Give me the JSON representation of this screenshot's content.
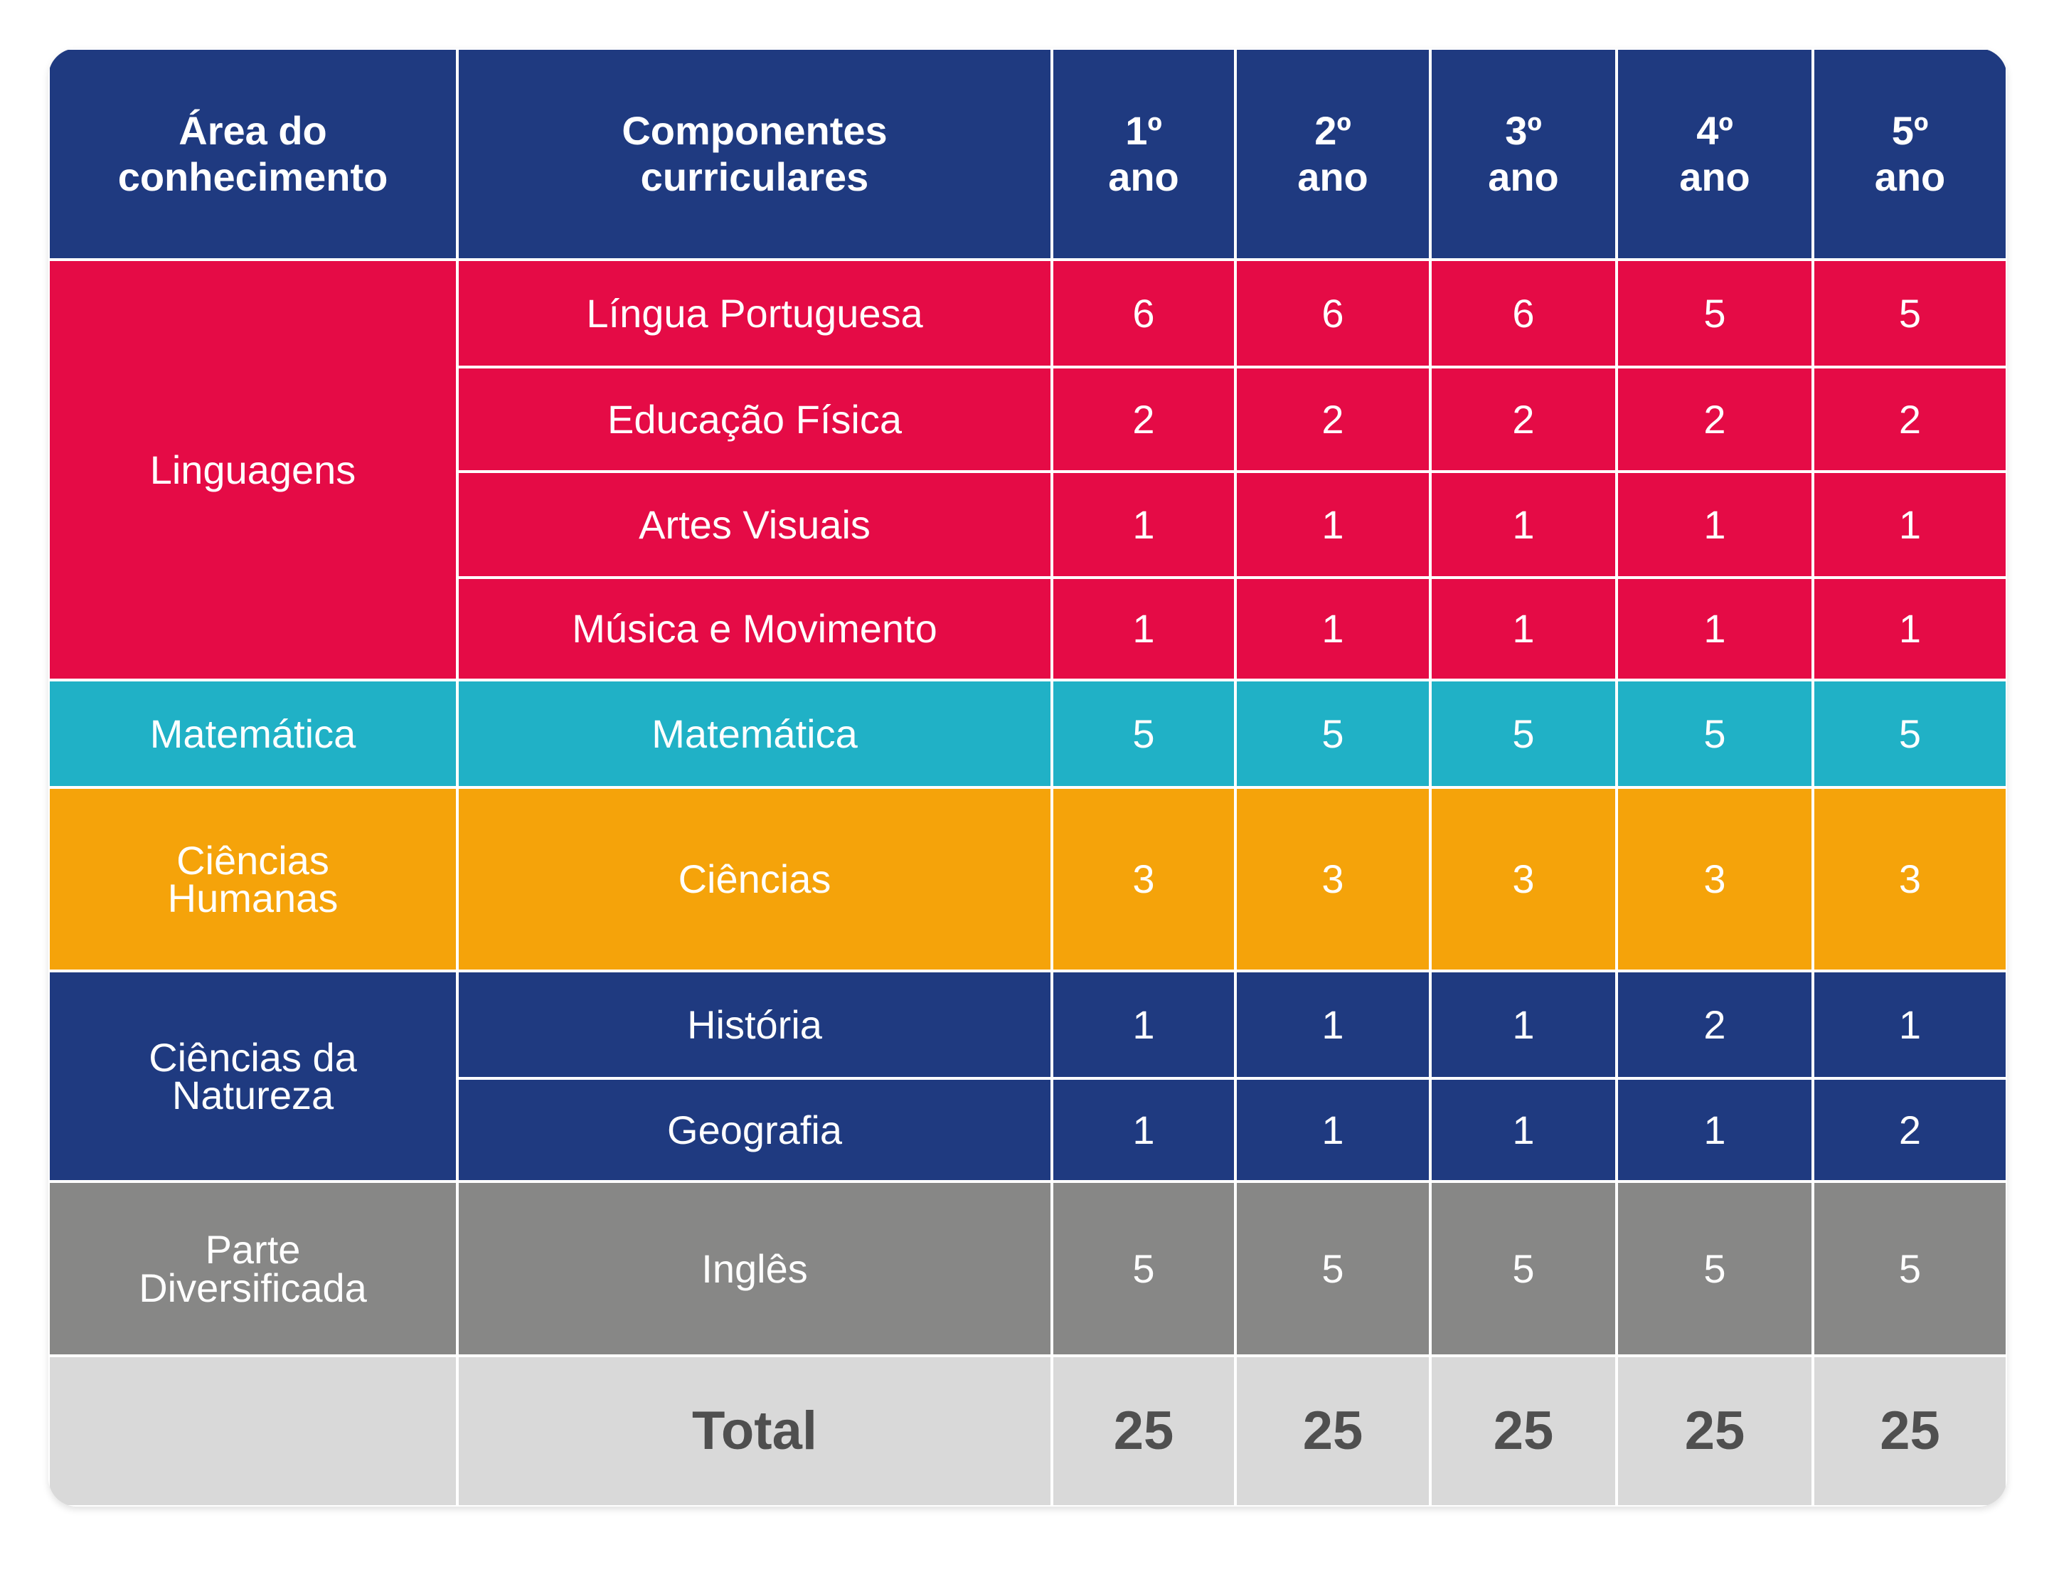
{
  "table": {
    "header": [
      "Área do conhecimento",
      "Componentes curriculares",
      "1º ano",
      "2º ano",
      "3º ano",
      "4º ano",
      "5º ano"
    ],
    "groups": [
      {
        "area": "Linguagens",
        "rows": [
          {
            "component": "Língua Portuguesa",
            "hours": [
              6,
              6,
              6,
              5,
              5
            ]
          },
          {
            "component": "Educação Física",
            "hours": [
              2,
              2,
              2,
              2,
              2
            ]
          },
          {
            "component": "Artes Visuais",
            "hours": [
              1,
              1,
              1,
              1,
              1
            ]
          },
          {
            "component": "Música e Movimento",
            "hours": [
              1,
              1,
              1,
              1,
              1
            ]
          }
        ]
      },
      {
        "area": "Matemática",
        "rows": [
          {
            "component": "Matemática",
            "hours": [
              5,
              5,
              5,
              5,
              5
            ]
          }
        ]
      },
      {
        "area": "Ciências Humanas",
        "rows": [
          {
            "component": "Ciências",
            "hours": [
              3,
              3,
              3,
              3,
              3
            ]
          }
        ]
      },
      {
        "area": "Ciências da Natureza",
        "rows": [
          {
            "component": "História",
            "hours": [
              1,
              1,
              1,
              2,
              1
            ]
          },
          {
            "component": "Geografia",
            "hours": [
              1,
              1,
              1,
              1,
              2
            ]
          }
        ]
      },
      {
        "area": "Parte Diversificada",
        "rows": [
          {
            "component": "Inglês",
            "hours": [
              5,
              5,
              5,
              5,
              5
            ]
          }
        ]
      }
    ],
    "total": {
      "label": "Total",
      "values": [
        25,
        25,
        25,
        25,
        25
      ]
    }
  }
}
